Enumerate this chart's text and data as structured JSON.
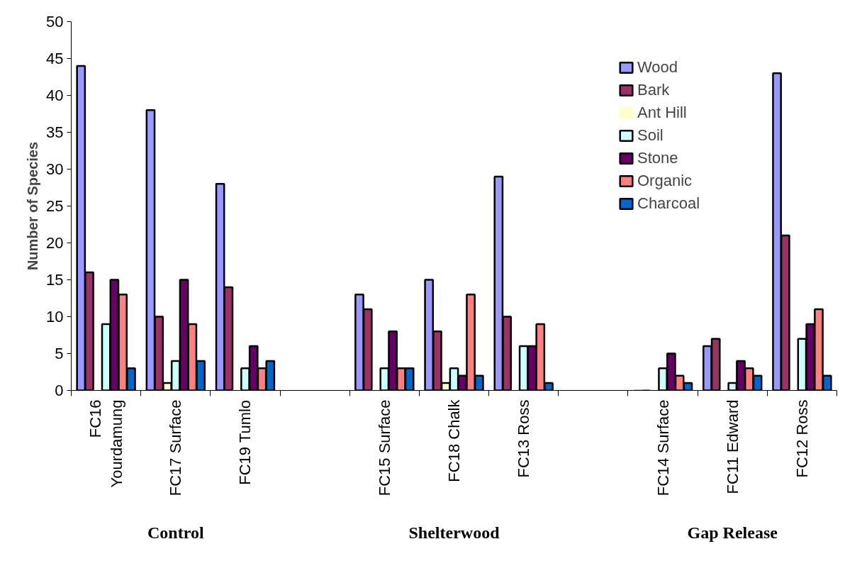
{
  "chart_data": {
    "type": "bar",
    "ylabel": "Number of Species",
    "categories": [
      "FC16 Yourdamung",
      "FC17 Surface",
      "FC19 Tumlo",
      null,
      "FC15 Surface",
      "FC18 Chalk",
      "FC13 Ross",
      null,
      "FC14 Surface",
      "FC11 Edward",
      "FC12 Ross"
    ],
    "series": [
      {
        "name": "Wood",
        "color": "#9999ff",
        "values": [
          44,
          38,
          28,
          null,
          13,
          15,
          29,
          null,
          0,
          6,
          43
        ]
      },
      {
        "name": "Bark",
        "color": "#993366",
        "values": [
          16,
          10,
          14,
          null,
          11,
          8,
          10,
          null,
          0,
          7,
          21
        ]
      },
      {
        "name": "Ant Hill",
        "color": "#ffffcc",
        "values": [
          0,
          1,
          0,
          null,
          0,
          1,
          0,
          null,
          0,
          0,
          0
        ]
      },
      {
        "name": "Soil",
        "color": "#ccffff",
        "values": [
          9,
          4,
          3,
          null,
          3,
          3,
          6,
          null,
          3,
          1,
          7
        ]
      },
      {
        "name": "Stone",
        "color": "#660066",
        "values": [
          15,
          15,
          6,
          null,
          8,
          2,
          6,
          null,
          5,
          4,
          9
        ]
      },
      {
        "name": "Organic",
        "color": "#ff8080",
        "values": [
          13,
          9,
          3,
          null,
          3,
          13,
          9,
          null,
          2,
          3,
          11
        ]
      },
      {
        "name": "Charcoal",
        "color": "#0066cc",
        "values": [
          3,
          4,
          4,
          null,
          3,
          2,
          1,
          null,
          1,
          2,
          2
        ]
      }
    ],
    "ylim": [
      0,
      50
    ],
    "yticks": [
      0,
      5,
      10,
      15,
      20,
      25,
      30,
      35,
      40,
      45,
      50
    ],
    "grid": false,
    "legend": "top right",
    "annotations": [
      "Control",
      "Shelterwood",
      "Gap Release"
    ]
  }
}
